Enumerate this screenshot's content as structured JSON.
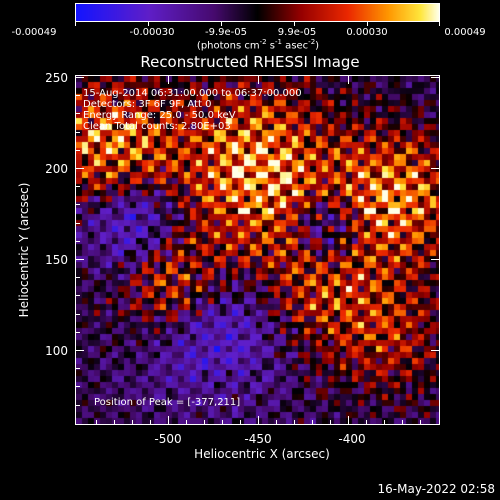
{
  "colorbar": {
    "tick_labels": [
      "-0.00049",
      "-0.00030",
      "-9.9e-05",
      "9.9e-05",
      "0.00030",
      "0.00049"
    ],
    "unit_prefix": "(photons cm",
    "unit_exp1": "-2",
    "unit_mid": " s",
    "unit_exp2": "-1",
    "unit_mid2": " asec",
    "unit_exp3": "-2",
    "unit_suffix": ")"
  },
  "title": "Reconstructed RHESSI Image",
  "annotations": {
    "line1": "15-Aug-2014 06:31:00.000 to 06:37:00.000",
    "line2": "Detectors: 3F 6F 9F, Att 0",
    "line3": "Energy Range: 25.0 - 50.0 keV",
    "line4": "Clean     Total counts: 2.80E+03",
    "peak": "Position of Peak = [-377,211]"
  },
  "axes": {
    "xlabel": "Heliocentric X (arcsec)",
    "ylabel": "Heliocentric Y (arcsec)",
    "xticks": [
      "-500",
      "-450",
      "-400"
    ],
    "yticks": [
      "250",
      "200",
      "150",
      "100"
    ]
  },
  "timestamp": "16-May-2022 02:58",
  "colors": {
    "background": "#000000",
    "foreground": "#ffffff"
  }
}
